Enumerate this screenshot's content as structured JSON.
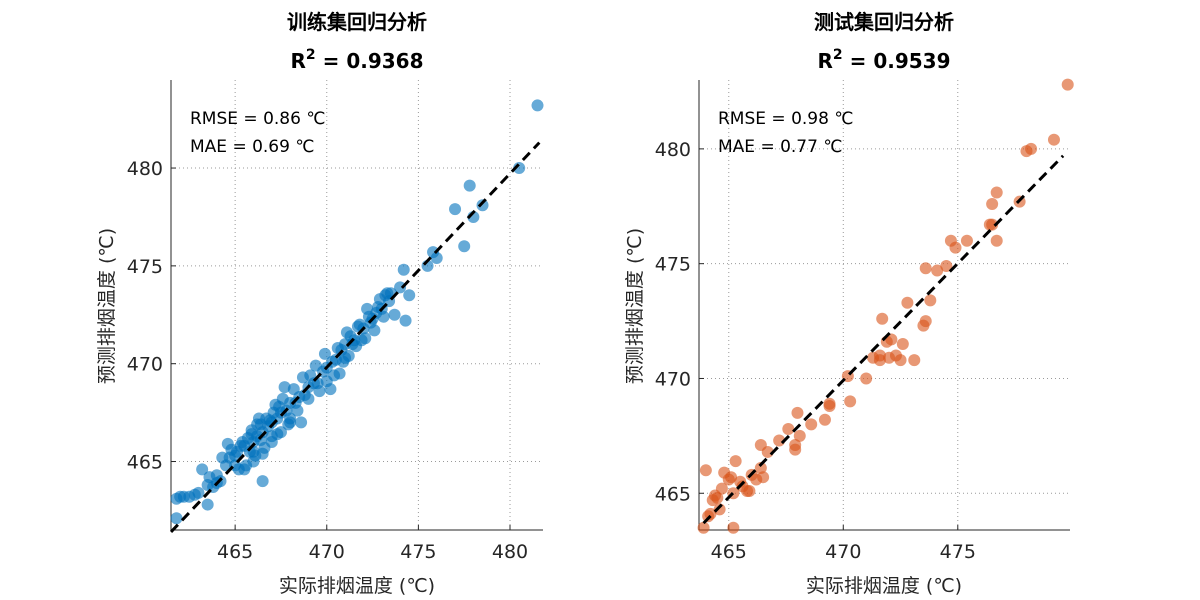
{
  "chart_data": [
    {
      "type": "scatter",
      "title": "训练集回归分析",
      "r2_prefix": "R",
      "r2_sup": "2",
      "r2_value": " = 0.9368",
      "xlabel": "实际排烟温度 (℃)",
      "ylabel": "预测排烟温度 (℃)",
      "xlim": [
        461.5,
        481.8
      ],
      "ylim": [
        461.5,
        484.5
      ],
      "xticks": [
        465,
        470,
        475,
        480
      ],
      "yticks": [
        465,
        470,
        475,
        480
      ],
      "grid": true,
      "annotations": [
        "RMSE = 0.86 ℃",
        "MAE = 0.69 ℃"
      ],
      "point_color": "#0072BD",
      "fit_line": [
        [
          461.5,
          461.4
        ],
        [
          481.6,
          481.3
        ]
      ],
      "x": [
        481.5,
        480.5,
        477.8,
        478.5,
        477.0,
        478.0,
        477.5,
        475.8,
        476.0,
        475.5,
        474.2,
        474.5,
        474.0,
        473.7,
        474.3,
        473.2,
        472.5,
        473.0,
        472.0,
        471.5,
        471.0,
        470.5,
        470.0,
        469.5,
        469.0,
        468.5,
        468.0,
        467.5,
        467.0,
        466.5,
        466.0,
        465.5,
        465.0,
        464.5,
        464.0,
        463.5,
        463.0,
        462.5,
        462.0,
        461.8,
        461.8,
        462.2,
        462.8,
        463.5,
        463.8,
        464.2,
        466.5,
        465.8,
        466.2,
        466.8,
        467.3,
        467.8,
        468.3,
        468.8,
        469.3,
        469.8,
        470.3,
        470.8,
        471.3,
        471.8,
        472.3,
        472.8,
        473.3,
        471.0,
        470.0,
        469.0,
        468.0,
        467.0,
        466.0,
        465.0,
        464.0,
        465.3,
        466.4,
        467.6,
        468.7,
        469.9,
        471.1,
        472.2,
        473.4,
        464.7,
        465.9,
        467.1,
        468.2,
        469.4,
        470.6,
        471.7,
        472.9,
        466.0,
        467.0,
        468.0,
        465.5,
        466.5,
        467.5,
        470.2,
        470.7,
        471.2,
        471.6,
        472.1,
        472.6,
        473.1,
        464.3,
        464.8,
        465.1,
        465.7,
        466.2,
        466.7,
        467.2,
        467.7,
        468.4,
        469.1,
        469.6,
        470.4,
        470.9,
        471.4,
        471.9,
        472.4,
        472.7,
        473.5,
        465.2,
        466.1,
        466.9,
        467.4,
        466.4,
        467.9,
        463.2,
        463.6,
        464.6,
        465.4,
        465.6,
        466.6,
        466.3,
        465.9,
        467.3,
        468.6
      ],
      "y": [
        483.2,
        480.0,
        479.1,
        478.1,
        477.9,
        477.5,
        476.0,
        475.7,
        475.4,
        475.0,
        474.8,
        473.5,
        473.9,
        472.5,
        472.2,
        473.5,
        472.3,
        472.8,
        471.8,
        471.2,
        471.0,
        470.2,
        469.8,
        469.0,
        468.8,
        468.3,
        468.0,
        467.5,
        467.0,
        466.5,
        466.0,
        465.8,
        465.3,
        464.8,
        464.3,
        463.8,
        463.4,
        463.2,
        463.2,
        463.1,
        462.1,
        463.2,
        463.3,
        462.8,
        463.7,
        464.0,
        464.0,
        465.5,
        466.3,
        466.8,
        467.2,
        467.6,
        468.0,
        468.4,
        469.0,
        469.6,
        470.1,
        470.7,
        471.4,
        472.0,
        472.4,
        472.9,
        473.6,
        470.3,
        469.1,
        468.2,
        467.2,
        466.3,
        465.5,
        464.8,
        463.9,
        465.8,
        466.9,
        468.2,
        469.3,
        470.5,
        471.6,
        472.8,
        473.2,
        465.2,
        466.4,
        467.5,
        468.7,
        469.9,
        470.8,
        471.9,
        473.3,
        465.0,
        466.0,
        467.0,
        464.6,
        465.4,
        466.5,
        468.7,
        469.5,
        470.4,
        470.9,
        471.3,
        471.7,
        472.4,
        465.2,
        465.6,
        465.5,
        466.2,
        466.9,
        467.2,
        467.9,
        468.8,
        467.6,
        469.4,
        468.6,
        469.4,
        470.1,
        471.0,
        471.2,
        472.1,
        472.6,
        473.6,
        464.6,
        465.3,
        467.1,
        467.8,
        466.1,
        466.9,
        464.6,
        464.2,
        465.9,
        466.0,
        464.8,
        465.7,
        467.2,
        466.6,
        466.4,
        467.0
      ]
    },
    {
      "type": "scatter",
      "title": "测试集回归分析",
      "r2_prefix": "R",
      "r2_sup": "2",
      "r2_value": " = 0.9539",
      "xlabel": "实际排烟温度 (℃)",
      "ylabel": "预测排烟温度 (℃)",
      "xlim": [
        463.7,
        479.9
      ],
      "ylim": [
        463.4,
        483.0
      ],
      "xticks": [
        465,
        470,
        475
      ],
      "yticks": [
        465,
        470,
        475,
        480
      ],
      "grid": true,
      "annotations": [
        "RMSE = 0.98 ℃",
        "MAE = 0.77 ℃"
      ],
      "point_color": "#D95319",
      "fit_line": [
        [
          463.9,
          463.7
        ],
        [
          479.6,
          479.7
        ]
      ],
      "x": [
        479.8,
        479.2,
        478.2,
        478.0,
        477.7,
        476.7,
        476.5,
        476.5,
        476.7,
        476.4,
        475.4,
        474.9,
        474.7,
        474.5,
        474.1,
        473.8,
        473.6,
        473.6,
        473.5,
        472.8,
        472.6,
        472.3,
        472.1,
        472.0,
        471.9,
        471.7,
        471.6,
        471.3,
        471.0,
        470.3,
        469.4,
        469.2,
        468.6,
        468.1,
        467.6,
        467.2,
        466.7,
        466.4,
        466.2,
        465.8,
        465.5,
        465.2,
        465.0,
        464.8,
        464.5,
        464.3,
        464.2,
        464.1,
        463.9,
        464.0,
        464.4,
        464.7,
        465.1,
        465.3,
        465.6,
        466.0,
        466.5,
        467.9,
        468.0,
        469.4,
        471.6,
        472.5,
        473.1,
        470.2,
        467.9,
        466.4,
        465.2,
        464.6,
        465.9
      ],
      "y": [
        482.8,
        480.4,
        480.0,
        479.9,
        477.7,
        478.1,
        477.6,
        476.7,
        476.0,
        476.7,
        476.0,
        475.7,
        476.0,
        474.9,
        474.7,
        473.4,
        474.8,
        472.5,
        472.3,
        473.3,
        471.5,
        471.0,
        471.7,
        470.9,
        471.6,
        472.6,
        471.0,
        470.9,
        470.0,
        469.0,
        468.8,
        468.2,
        468.0,
        467.5,
        467.8,
        467.3,
        466.8,
        466.1,
        465.6,
        465.1,
        465.5,
        465.0,
        465.6,
        465.9,
        464.8,
        464.7,
        464.1,
        464.0,
        463.5,
        466.0,
        464.9,
        465.2,
        465.7,
        466.4,
        465.3,
        465.8,
        465.7,
        466.9,
        468.5,
        468.9,
        470.8,
        470.8,
        470.8,
        470.1,
        467.1,
        467.1,
        463.5,
        464.3,
        465.1
      ]
    }
  ]
}
